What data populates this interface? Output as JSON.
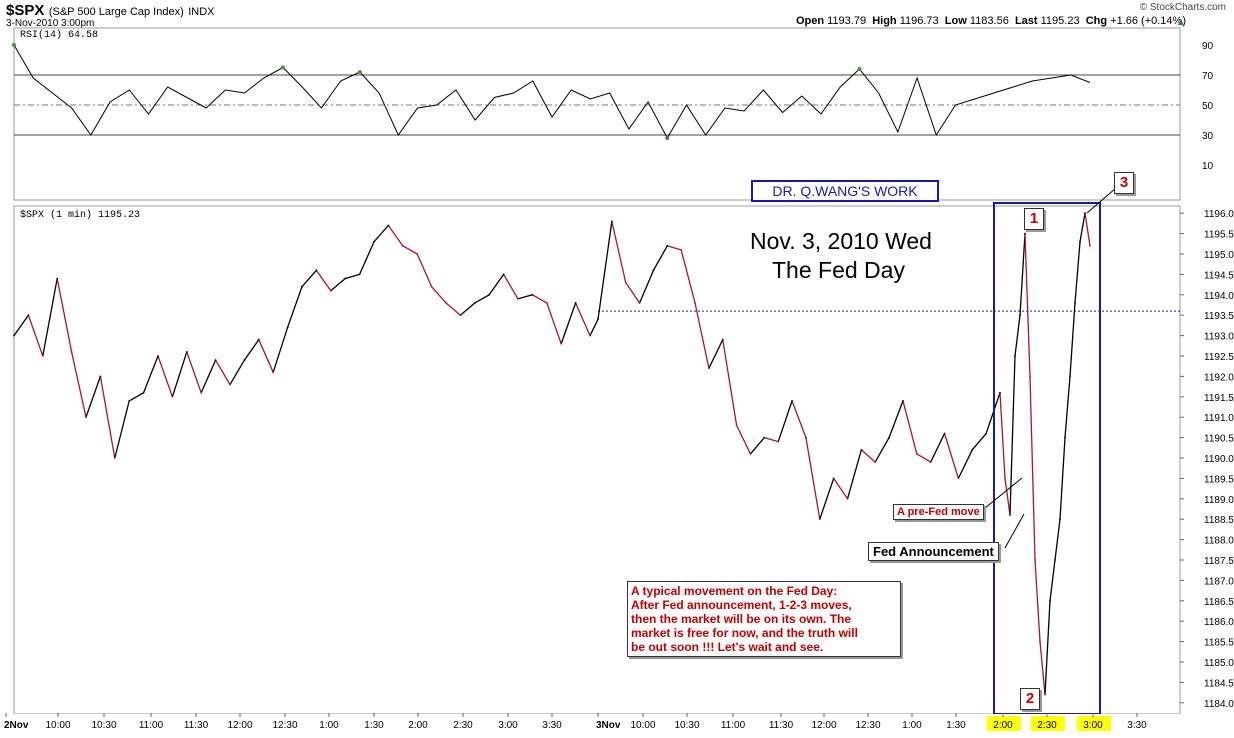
{
  "header": {
    "symbol": "$SPX",
    "name": "(S&P 500 Large Cap Index)",
    "exchange": "INDX",
    "datetime": "3-Nov-2010 3:00pm",
    "source": "© StockCharts.com",
    "ohlc": {
      "open_label": "Open",
      "open": "1193.79",
      "high_label": "High",
      "high": "1196.73",
      "low_label": "Low",
      "low": "1183.56",
      "last_label": "Last",
      "last": "1195.23",
      "chg_label": "Chg",
      "chg": "+1.66 (+0.14%)"
    }
  },
  "colors": {
    "up": "#000000",
    "down": "#b0103a",
    "box": "#1a1aa8",
    "highlight": "#ffff00",
    "annotation": "#c00000"
  },
  "annotations": {
    "watermark": "DR. Q.WANG'S WORK",
    "title_line1": "Nov. 3, 2010 Wed",
    "title_line2": "The Fed Day",
    "pre_fed": "A pre-Fed move",
    "fed_announcement": "Fed Announcement",
    "note_lines": [
      "A typical movement on the Fed Day:",
      "After Fed announcement, 1-2-3 moves,",
      "then the market will be on its own.  The",
      "market is free for now, and the truth will",
      "be out soon !!! Let's wait and see."
    ],
    "markers": [
      "1",
      "2",
      "3"
    ]
  },
  "chart_data": [
    {
      "type": "line",
      "panel": "rsi",
      "legend": "RSI(14) 64.58",
      "ylim": [
        0,
        100
      ],
      "yticks": [
        10,
        30,
        50,
        70,
        90
      ],
      "reference_lines": [
        30,
        50,
        70
      ],
      "series": [
        {
          "name": "RSI(14)",
          "x": [
            "2Nov 9:30",
            "9:45",
            "10:00",
            "10:15",
            "10:30",
            "10:45",
            "11:00",
            "11:15",
            "11:30",
            "11:45",
            "12:00",
            "12:15",
            "12:30",
            "12:45",
            "1:00",
            "1:15",
            "1:30",
            "1:45",
            "2:00",
            "2:15",
            "2:30",
            "2:45",
            "3:00",
            "3:15",
            "3:30",
            "3:45",
            "3Nov 9:30",
            "9:45",
            "10:00",
            "10:15",
            "10:30",
            "10:45",
            "11:00",
            "11:15",
            "11:30",
            "11:45",
            "12:00",
            "12:15",
            "12:30",
            "12:45",
            "1:00",
            "1:15",
            "1:30",
            "1:45",
            "2:00",
            "2:05",
            "2:10",
            "2:15",
            "2:20",
            "2:25",
            "2:30",
            "2:35",
            "2:40",
            "2:45",
            "2:50",
            "2:55",
            "3:00"
          ],
          "values": [
            90,
            68,
            58,
            48,
            30,
            52,
            60,
            44,
            62,
            55,
            48,
            60,
            58,
            68,
            75,
            62,
            48,
            66,
            72,
            58,
            30,
            48,
            50,
            60,
            40,
            55,
            58,
            66,
            42,
            60,
            54,
            58,
            34,
            52,
            28,
            50,
            30,
            48,
            46,
            60,
            45,
            56,
            44,
            62,
            74,
            58,
            32,
            68,
            30,
            50,
            54,
            58,
            62,
            66,
            68,
            70,
            65
          ]
        }
      ]
    },
    {
      "type": "line",
      "panel": "price",
      "legend": "$SPX (1 min) 1195.23",
      "ylim": [
        1183.75,
        1196.25
      ],
      "yticks": [
        "1184.0",
        "1184.5",
        "1185.0",
        "1185.5",
        "1186.0",
        "1186.5",
        "1187.0",
        "1187.5",
        "1188.0",
        "1188.5",
        "1189.0",
        "1189.5",
        "1190.0",
        "1190.5",
        "1191.0",
        "1191.5",
        "1192.0",
        "1192.5",
        "1193.0",
        "1193.5",
        "1194.0",
        "1194.5",
        "1195.0",
        "1195.5",
        "1196.0"
      ],
      "x_tick_labels": [
        "2Nov",
        "10:00",
        "10:30",
        "11:00",
        "11:30",
        "12:00",
        "12:30",
        "1:00",
        "1:30",
        "2:00",
        "2:30",
        "3:00",
        "3:30",
        "3Nov",
        "10:00",
        "10:30",
        "11:00",
        "11:30",
        "12:00",
        "12:30",
        "1:00",
        "1:30",
        "2:00",
        "2:30",
        "3:00",
        "3:30"
      ],
      "highlighted_x_ticks": [
        "2:00",
        "2:30",
        "3:00"
      ],
      "reference_line": 1193.6,
      "series": [
        {
          "name": "$SPX (1 min)",
          "x": [
            "2Nov 9:30",
            "9:33",
            "9:40",
            "9:48",
            "9:55",
            "10:05",
            "10:15",
            "10:25",
            "10:35",
            "10:45",
            "10:55",
            "11:05",
            "11:15",
            "11:25",
            "11:35",
            "11:45",
            "11:55",
            "12:05",
            "12:15",
            "12:25",
            "12:35",
            "12:45",
            "12:55",
            "1:05",
            "1:15",
            "1:25",
            "1:35",
            "1:45",
            "1:55",
            "2:05",
            "2:15",
            "2:25",
            "2:35",
            "2:45",
            "2:55",
            "3:05",
            "3:15",
            "3:25",
            "3:35",
            "3:45",
            "3:55",
            "3Nov 9:30",
            "9:35",
            "9:45",
            "9:55",
            "10:05",
            "10:15",
            "10:25",
            "10:35",
            "10:45",
            "10:55",
            "11:05",
            "11:15",
            "11:25",
            "11:35",
            "11:45",
            "11:55",
            "12:05",
            "12:15",
            "12:25",
            "12:35",
            "12:45",
            "12:55",
            "1:05",
            "1:15",
            "1:25",
            "1:35",
            "1:45",
            "1:55",
            "2:05",
            "2:12",
            "2:14",
            "2:15",
            "2:16",
            "2:17",
            "2:18",
            "2:19",
            "2:20",
            "2:22",
            "2:24",
            "2:26",
            "2:28",
            "2:30",
            "2:35",
            "2:40",
            "2:45",
            "2:50",
            "2:55",
            "3:00"
          ],
          "values": [
            1193.0,
            1193.5,
            1192.5,
            1194.4,
            1192.6,
            1191.0,
            1192.0,
            1190.0,
            1191.4,
            1191.6,
            1192.5,
            1191.5,
            1192.6,
            1191.6,
            1192.4,
            1191.8,
            1192.4,
            1192.9,
            1192.1,
            1193.2,
            1194.2,
            1194.6,
            1194.1,
            1194.4,
            1194.5,
            1195.3,
            1195.7,
            1195.2,
            1195.0,
            1194.2,
            1193.8,
            1193.5,
            1193.8,
            1194.0,
            1194.5,
            1193.9,
            1194.0,
            1193.8,
            1192.8,
            1193.8,
            1193.0,
            1193.4,
            1195.8,
            1194.3,
            1193.8,
            1194.6,
            1195.2,
            1195.1,
            1193.8,
            1192.2,
            1192.9,
            1190.8,
            1190.1,
            1190.5,
            1190.4,
            1191.4,
            1190.5,
            1188.5,
            1189.5,
            1189.0,
            1190.2,
            1189.9,
            1190.5,
            1191.4,
            1190.1,
            1189.9,
            1190.6,
            1189.5,
            1190.2,
            1190.6,
            1191.6,
            1189.5,
            1188.6,
            1192.5,
            1193.5,
            1195.5,
            1192.0,
            1187.5,
            1185.5,
            1184.2,
            1186.5,
            1187.5,
            1188.5,
            1190.5,
            1192.0,
            1193.8,
            1195.3,
            1196.0,
            1195.2
          ]
        }
      ]
    }
  ]
}
